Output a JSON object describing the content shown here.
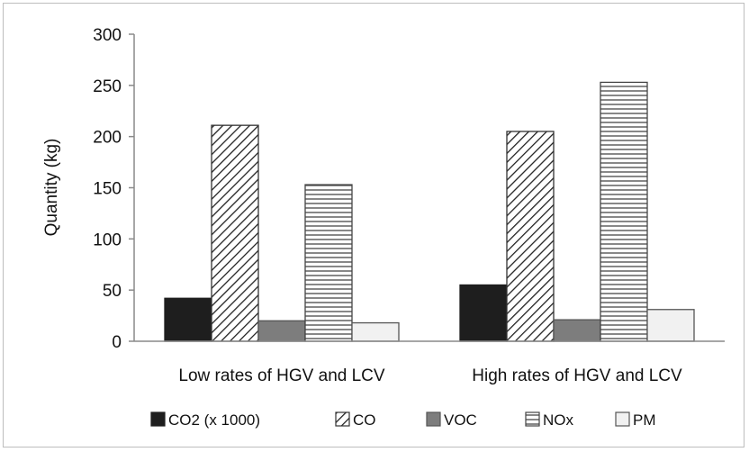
{
  "chart_data": {
    "type": "bar",
    "title": "",
    "xlabel": "",
    "ylabel": "Quantity (kg)",
    "ylim": [
      0,
      300
    ],
    "yticks": [
      0,
      50,
      100,
      150,
      200,
      250,
      300
    ],
    "categories": [
      "Low rates of HGV and LCV",
      "High rates of HGV and LCV"
    ],
    "series": [
      {
        "name": "CO2 (x 1000)",
        "values": [
          42,
          55
        ],
        "fill": "solid-black"
      },
      {
        "name": "CO",
        "values": [
          211,
          205
        ],
        "fill": "diagonal-hatch"
      },
      {
        "name": "VOC",
        "values": [
          20,
          21
        ],
        "fill": "solid-gray"
      },
      {
        "name": "NOx",
        "values": [
          153,
          253
        ],
        "fill": "horizontal-lines"
      },
      {
        "name": "PM",
        "values": [
          18,
          31
        ],
        "fill": "light-white"
      }
    ],
    "grid": false,
    "legend": "bottom"
  }
}
